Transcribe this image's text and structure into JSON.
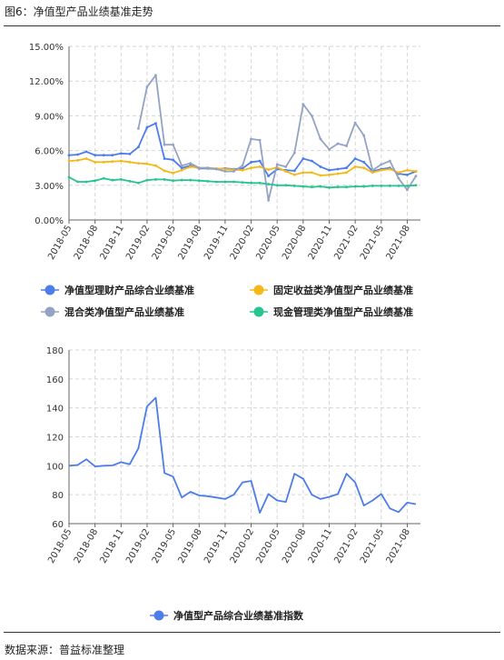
{
  "page": {
    "title": "图6：净值型产品业绩基准走势",
    "source": "数据来源：普益标准整理"
  },
  "chart_data": [
    {
      "type": "line",
      "x": [
        "2018-05",
        "2018-06",
        "2018-07",
        "2018-08",
        "2018-09",
        "2018-10",
        "2018-11",
        "2018-12",
        "2019-01",
        "2019-02",
        "2019-03",
        "2019-04",
        "2019-05",
        "2019-06",
        "2019-07",
        "2019-08",
        "2019-09",
        "2019-10",
        "2019-11",
        "2019-12",
        "2020-01",
        "2020-02",
        "2020-03",
        "2020-04",
        "2020-05",
        "2020-06",
        "2020-07",
        "2020-08",
        "2020-09",
        "2020-10",
        "2020-11",
        "2020-12",
        "2021-01",
        "2021-02",
        "2021-03",
        "2021-04",
        "2021-05",
        "2021-06",
        "2021-07",
        "2021-08",
        "2021-09"
      ],
      "xticks": [
        "2018-05",
        "2018-08",
        "2018-11",
        "2019-02",
        "2019-05",
        "2019-08",
        "2019-11",
        "2020-02",
        "2020-05",
        "2020-08",
        "2020-11",
        "2021-02",
        "2021-05",
        "2021-08"
      ],
      "yticks": [
        "0.00%",
        "3.00%",
        "6.00%",
        "9.00%",
        "12.00%",
        "15.00%"
      ],
      "ylim": [
        0,
        15
      ],
      "grid": true,
      "legend": "bottom",
      "series": [
        {
          "name": "净值型理财产品综合业绩基准",
          "color": "#4d7de8",
          "marker": true,
          "values": [
            5.6,
            5.65,
            5.9,
            5.6,
            5.6,
            5.6,
            5.75,
            5.7,
            6.3,
            8.0,
            8.35,
            5.3,
            5.2,
            4.5,
            4.7,
            4.45,
            4.45,
            4.4,
            4.45,
            4.4,
            4.45,
            5.0,
            5.1,
            3.8,
            4.4,
            4.3,
            4.25,
            5.3,
            5.1,
            4.6,
            4.3,
            4.4,
            4.5,
            5.3,
            5.0,
            4.2,
            4.4,
            4.5,
            4.0,
            3.9,
            4.2
          ]
        },
        {
          "name": "固定收益类净值型产品业绩基准",
          "color": "#f5b818",
          "marker": true,
          "values": [
            5.1,
            5.15,
            5.3,
            5.0,
            5.0,
            5.05,
            5.1,
            5.0,
            4.9,
            4.85,
            4.7,
            4.25,
            4.05,
            4.3,
            4.6,
            4.5,
            4.5,
            4.45,
            4.4,
            4.35,
            4.3,
            4.5,
            4.6,
            4.35,
            4.55,
            4.2,
            3.9,
            4.1,
            4.1,
            3.85,
            3.9,
            4.0,
            4.1,
            4.6,
            4.5,
            4.1,
            4.3,
            4.4,
            4.1,
            4.3,
            4.2
          ]
        },
        {
          "name": "混合类净值型产品业绩基准",
          "color": "#94a3c3",
          "marker": true,
          "values": [
            null,
            null,
            null,
            null,
            null,
            null,
            null,
            null,
            7.9,
            11.5,
            12.5,
            6.5,
            6.5,
            4.7,
            4.9,
            4.5,
            4.5,
            4.4,
            4.2,
            4.2,
            4.7,
            7.0,
            6.9,
            1.7,
            4.8,
            4.6,
            5.8,
            10.0,
            9.0,
            7.0,
            6.1,
            6.6,
            6.4,
            8.4,
            7.3,
            4.3,
            4.8,
            5.1,
            3.6,
            2.6,
            3.8
          ]
        },
        {
          "name": "现金管理类净值型产品业绩基准",
          "color": "#26c48e",
          "marker": true,
          "values": [
            3.7,
            3.3,
            3.3,
            3.4,
            3.6,
            3.45,
            3.5,
            3.35,
            3.2,
            3.45,
            3.5,
            3.5,
            3.4,
            3.45,
            3.45,
            3.4,
            3.35,
            3.3,
            3.3,
            3.3,
            3.25,
            3.2,
            3.2,
            3.1,
            3.0,
            3.0,
            2.95,
            2.9,
            2.85,
            2.9,
            2.8,
            2.85,
            2.85,
            2.9,
            2.9,
            2.95,
            2.95,
            2.95,
            2.95,
            2.95,
            3.0
          ]
        }
      ]
    },
    {
      "type": "line",
      "x": [
        "2018-05",
        "2018-06",
        "2018-07",
        "2018-08",
        "2018-09",
        "2018-10",
        "2018-11",
        "2018-12",
        "2019-01",
        "2019-02",
        "2019-03",
        "2019-04",
        "2019-05",
        "2019-06",
        "2019-07",
        "2019-08",
        "2019-09",
        "2019-10",
        "2019-11",
        "2019-12",
        "2020-01",
        "2020-02",
        "2020-03",
        "2020-04",
        "2020-05",
        "2020-06",
        "2020-07",
        "2020-08",
        "2020-09",
        "2020-10",
        "2020-11",
        "2020-12",
        "2021-01",
        "2021-02",
        "2021-03",
        "2021-04",
        "2021-05",
        "2021-06",
        "2021-07",
        "2021-08",
        "2021-09"
      ],
      "xticks": [
        "2018-05",
        "2018-08",
        "2018-11",
        "2019-02",
        "2019-05",
        "2019-08",
        "2019-11",
        "2020-02",
        "2020-05",
        "2020-08",
        "2020-11",
        "2021-02",
        "2021-05",
        "2021-08"
      ],
      "yticks": [
        "60",
        "80",
        "100",
        "120",
        "140",
        "160",
        "180"
      ],
      "ylim": [
        60,
        180
      ],
      "grid": true,
      "legend": "bottom",
      "series": [
        {
          "name": "净值型产品综合业绩基准指数",
          "color": "#4d7de8",
          "marker": false,
          "values": [
            100,
            100.5,
            104.5,
            99.5,
            100,
            100.2,
            102.5,
            101,
            112,
            141,
            147,
            95,
            92.5,
            78,
            82,
            79.5,
            79,
            78,
            77,
            80,
            88.5,
            89.5,
            67.5,
            80.5,
            76,
            75,
            94.5,
            91,
            80,
            77,
            78.5,
            80.5,
            94.5,
            88.5,
            72.5,
            76,
            80.5,
            70.5,
            68,
            74.5,
            73.5
          ]
        }
      ]
    }
  ]
}
